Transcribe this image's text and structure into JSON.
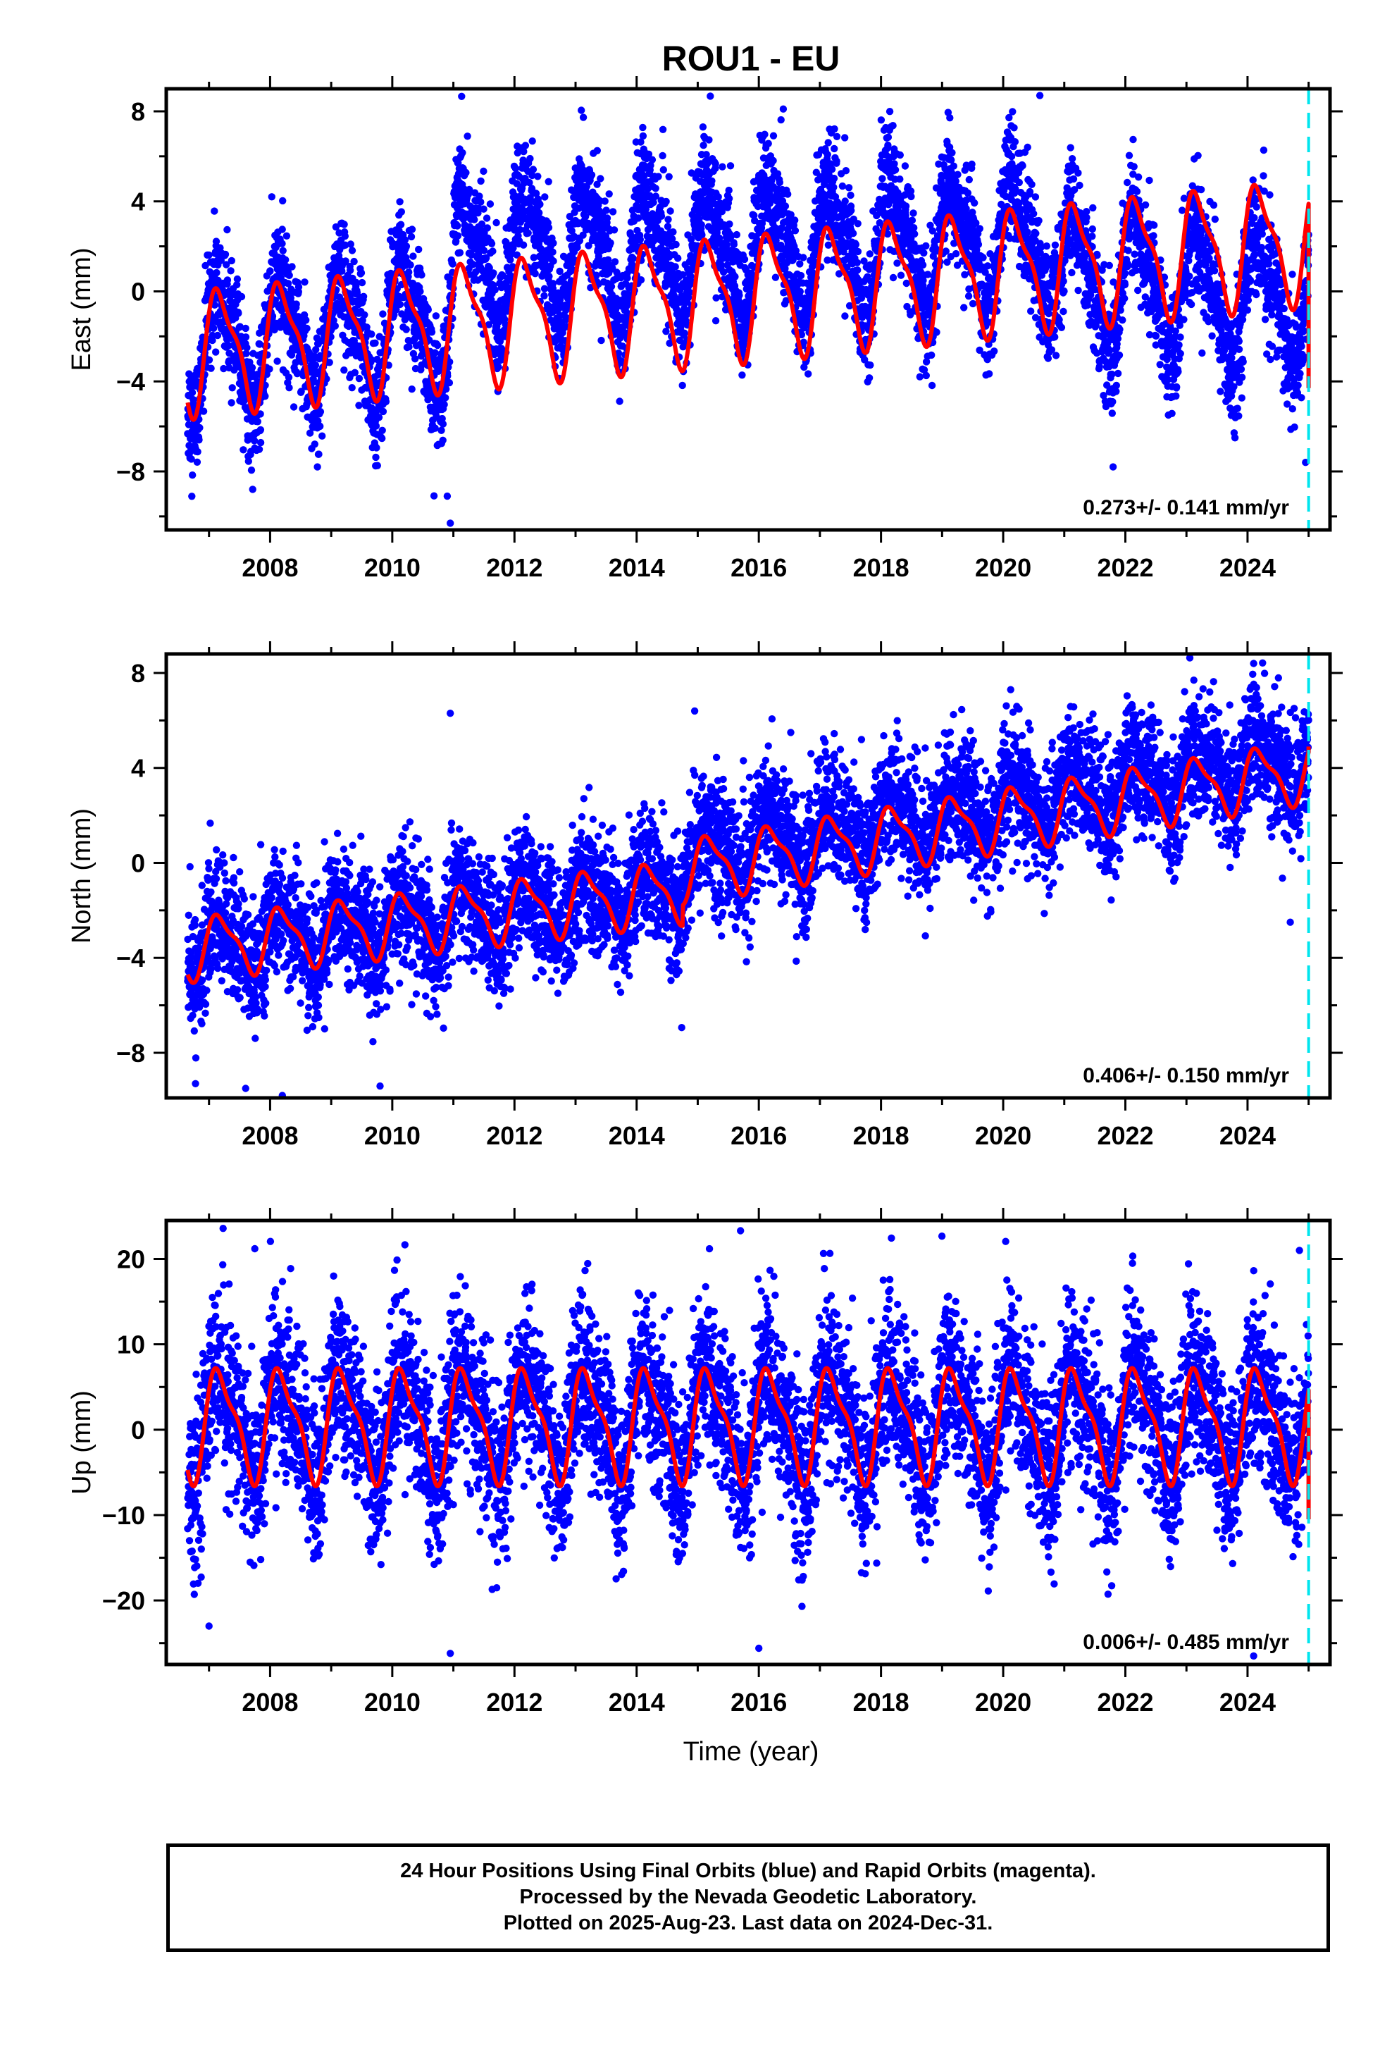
{
  "title": "ROU1 - EU",
  "colors": {
    "final_orbits": "#0000ff",
    "model_fit": "#ff0000",
    "last_data_marker": "#00e5ee",
    "frame": "#000000"
  },
  "xlabel": "Time (year)",
  "footer": {
    "line1": "24 Hour Positions Using Final Orbits (blue) and Rapid Orbits (magenta).",
    "line2": "Processed by the Nevada Geodetic Laboratory.",
    "line3": "Plotted on 2025-Aug-23. Last data on 2024-Dec-31."
  },
  "chart_data": [
    {
      "type": "scatter",
      "ylabel": "East (mm)",
      "rate_label": "0.273+/- 0.141 mm/yr",
      "xlim": [
        2006.3,
        2025.35
      ],
      "ylim": [
        -10.6,
        9.0
      ],
      "yticks": [
        -8,
        -4,
        0,
        4,
        8
      ],
      "xticks": [
        2008,
        2010,
        2012,
        2014,
        2016,
        2018,
        2020,
        2022,
        2024
      ],
      "data_start": 2006.65,
      "last_data": 2025.0,
      "series": [
        {
          "name": "Final Orbits",
          "style": "points",
          "trend_segments": [
            {
              "from": 2006.65,
              "to": 2011.0,
              "value_at_start": -2.6,
              "rate": 0.3
            },
            {
              "from": 2011.0,
              "to": 2020.9,
              "value_at_start": 1.6,
              "rate": 0.06
            },
            {
              "from": 2020.9,
              "to": 2025.0,
              "value_at_start": 0.6,
              "rate": -0.25
            }
          ],
          "seasonal_amplitude": 2.8,
          "scatter": 1.3,
          "outliers": [
            [
              2010.95,
              -10.3
            ],
            [
              2010.9,
              -9.1
            ],
            [
              2016.4,
              8.1
            ],
            [
              2020.6,
              8.7
            ],
            [
              2021.8,
              -7.8
            ],
            [
              2024.95,
              -7.6
            ]
          ]
        },
        {
          "name": "Model",
          "style": "line",
          "trend_segments": [
            {
              "from": 2006.65,
              "to": 2020.9,
              "value_at_start": -2.65,
              "rate": 0.27
            },
            {
              "from": 2020.9,
              "to": 2025.0,
              "value_at_start": 1.2,
              "rate": 0.27
            }
          ],
          "seasonal_amplitude": 2.7,
          "end_values": [
            -0.5,
            -4.3
          ]
        }
      ]
    },
    {
      "type": "scatter",
      "ylabel": "North (mm)",
      "rate_label": "0.406+/- 0.150 mm/yr",
      "xlim": [
        2006.3,
        2025.35
      ],
      "ylim": [
        -9.9,
        8.8
      ],
      "yticks": [
        -8,
        -4,
        0,
        4,
        8
      ],
      "xticks": [
        2008,
        2010,
        2012,
        2014,
        2016,
        2018,
        2020,
        2022,
        2024
      ],
      "data_start": 2006.65,
      "last_data": 2025.0,
      "series": [
        {
          "name": "Final Orbits",
          "style": "points",
          "trend_segments": [
            {
              "from": 2006.65,
              "to": 2014.75,
              "value_at_start": -3.6,
              "rate": 0.3
            },
            {
              "from": 2014.75,
              "to": 2025.0,
              "value_at_start": 0.3,
              "rate": 0.4
            }
          ],
          "seasonal_amplitude": 1.2,
          "scatter": 1.3,
          "outliers": [
            [
              2007.6,
              -9.5
            ],
            [
              2008.2,
              -9.8
            ],
            [
              2009.8,
              -9.4
            ],
            [
              2010.95,
              6.3
            ],
            [
              2014.95,
              6.4
            ],
            [
              2024.1,
              8.4
            ],
            [
              2024.7,
              -2.5
            ]
          ]
        },
        {
          "name": "Model",
          "style": "line",
          "trend_segments": [
            {
              "from": 2006.65,
              "to": 2014.75,
              "value_at_start": -3.6,
              "rate": 0.3
            },
            {
              "from": 2014.75,
              "to": 2025.0,
              "value_at_start": -0.3,
              "rate": 0.41
            }
          ],
          "seasonal_amplitude": 1.3,
          "end_values": [
            4.9
          ]
        }
      ]
    },
    {
      "type": "scatter",
      "ylabel": "Up (mm)",
      "rate_label": "0.006+/- 0.485 mm/yr",
      "xlim": [
        2006.3,
        2025.35
      ],
      "ylim": [
        -27.5,
        24.5
      ],
      "yticks": [
        -20,
        -10,
        0,
        10,
        20
      ],
      "xticks": [
        2008,
        2010,
        2012,
        2014,
        2016,
        2018,
        2020,
        2022,
        2024
      ],
      "data_start": 2006.65,
      "last_data": 2025.0,
      "series": [
        {
          "name": "Final Orbits",
          "style": "points",
          "trend_segments": [
            {
              "from": 2006.65,
              "to": 2025.0,
              "value_at_start": 0.8,
              "rate": 0.0
            }
          ],
          "seasonal_amplitude": 6.5,
          "scatter": 4.8,
          "outliers": [
            [
              2007.0,
              -23.0
            ],
            [
              2007.75,
              21.2
            ],
            [
              2010.95,
              -26.2
            ],
            [
              2015.7,
              23.3
            ],
            [
              2016.0,
              -25.6
            ],
            [
              2024.85,
              21.0
            ],
            [
              2024.1,
              -26.5
            ]
          ]
        },
        {
          "name": "Model",
          "style": "line",
          "trend_segments": [
            {
              "from": 2006.65,
              "to": 2025.0,
              "value_at_start": 0.8,
              "rate": 0.0
            }
          ],
          "seasonal_amplitude": 6.5,
          "end_values": [
            -10.5
          ]
        }
      ]
    }
  ]
}
